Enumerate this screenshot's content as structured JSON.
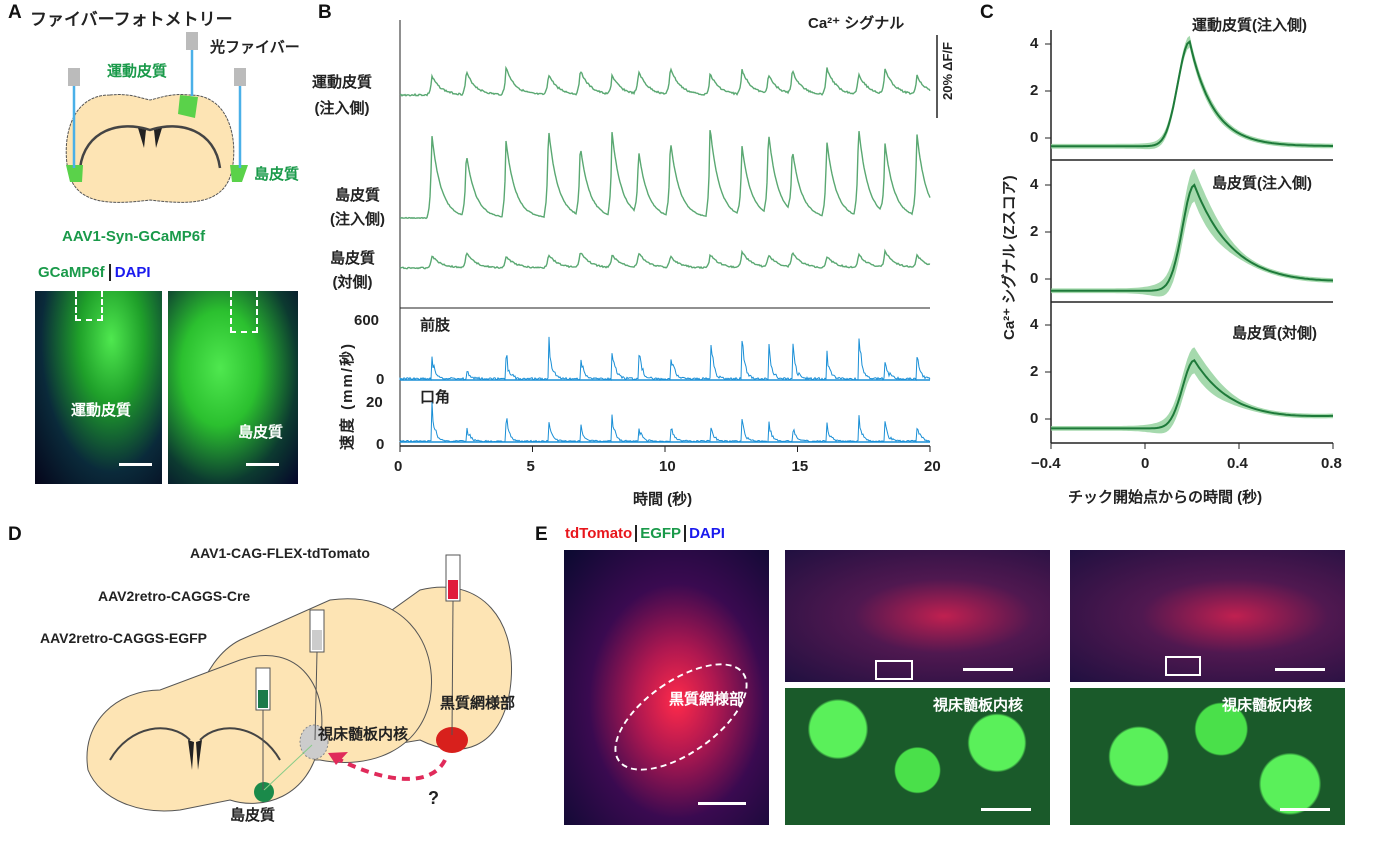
{
  "panels": {
    "a": "A",
    "b": "B",
    "c": "C",
    "d": "D",
    "e": "E"
  },
  "panel_a": {
    "title": "ファイバーフォトメトリー",
    "fiber_label": "光ファイバー",
    "motor_label": "運動皮質",
    "insula_label": "島皮質",
    "virus": "AAV1-Syn-GCaMP6f",
    "stain_gcamp": "GCaMP6f",
    "stain_dapi": "DAPI",
    "image1_label": "運動皮質",
    "image2_label": "島皮質"
  },
  "panel_d": {
    "virus_tdtomato": "AAV1-CAG-FLEX-tdTomato",
    "virus_cre": "AAV2retro-CAGGS-Cre",
    "virus_egfp": "AAV2retro-CAGGS-EGFP",
    "thalamus_label": "視床髄板内核",
    "snr_label": "黒質網様部",
    "insula_label": "島皮質",
    "question": "?"
  },
  "panel_e": {
    "stain_tdtomato": "tdTomato",
    "stain_egfp": "EGFP",
    "stain_dapi": "DAPI",
    "snr_label": "黒質網様部",
    "thalamus_label_1": "視床髄板内核",
    "thalamus_label_2": "視床髄板内核"
  },
  "colors": {
    "trace_green": "#5aa872",
    "velocity_blue": "#1a8fd6",
    "mean_green": "#1e7a3a",
    "band_green": "#8fcf98"
  },
  "chart_data": [
    {
      "type": "line",
      "title": "Ca²⁺ シグナル",
      "scale_bar": "20% ΔF/F",
      "xlabel": "時間 (秒)",
      "xlim": [
        0,
        20
      ],
      "xticks": [
        "0",
        "5",
        "10",
        "15",
        "20"
      ],
      "series_labels": [
        [
          "運動皮質",
          "(注入側)"
        ],
        [
          "島皮質",
          "(注入側)"
        ],
        [
          "島皮質",
          "(対側)"
        ]
      ],
      "peak_times": [
        1.2,
        2.5,
        4.0,
        5.6,
        6.8,
        8.0,
        9.0,
        10.2,
        11.7,
        12.9,
        13.9,
        14.8,
        16.1,
        17.3,
        18.3,
        19.5
      ],
      "velocity": {
        "ylabel": "速度 (mm/秒)",
        "series": [
          {
            "name": "前肢",
            "ylim": [
              0,
              600
            ],
            "yticks": [
              "0",
              "600"
            ],
            "peak_values": [
              270,
              150,
              330,
              620,
              300,
              450,
              400,
              420,
              560,
              520,
              430,
              440,
              380,
              560,
              300,
              320
            ]
          },
          {
            "name": "口角",
            "ylim": [
              0,
              20
            ],
            "yticks": [
              "0",
              "20"
            ],
            "peak_values": [
              22,
              12,
              16,
              14,
              12,
              15,
              10,
              14,
              12,
              16,
              12,
              13,
              12,
              18,
              12,
              13
            ]
          }
        ]
      }
    },
    {
      "type": "line",
      "xlabel": "チック開始点からの時間 (秒)",
      "ylabel": "Ca²⁺ シグナル (Zスコア)",
      "xlim": [
        -0.4,
        0.8
      ],
      "xticks": [
        "−0.4",
        "0",
        "0.4",
        "0.8"
      ],
      "ylim": [
        -1,
        5
      ],
      "yticks": [
        "0",
        "2",
        "4"
      ],
      "series": [
        {
          "name": "運動皮質(注入側)",
          "baseline": -0.35,
          "peak": 4.1,
          "peak_time": 0.19,
          "end": -0.35,
          "sem": 0.15
        },
        {
          "name": "島皮質(注入側)",
          "baseline": -0.5,
          "peak": 4.0,
          "peak_time": 0.21,
          "end": -0.2,
          "sem": 0.6
        },
        {
          "name": "島皮質(対側)",
          "baseline": -0.4,
          "peak": 2.5,
          "peak_time": 0.21,
          "end": 0.05,
          "sem": 0.45
        }
      ]
    }
  ]
}
